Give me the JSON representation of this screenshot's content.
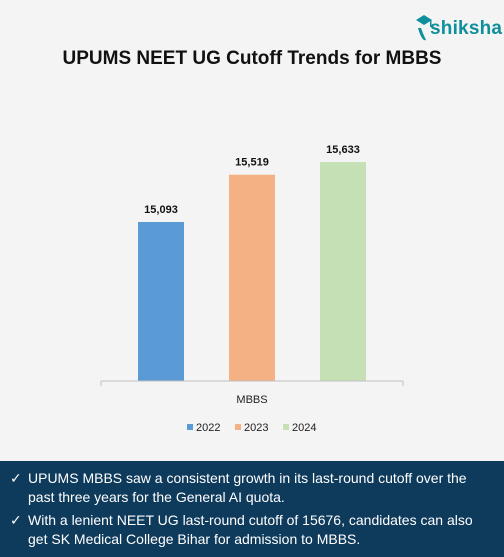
{
  "brand": {
    "name": "shiksha"
  },
  "colors": {
    "accent": "#0f8f9b",
    "footer_bg": "#0e3a5c"
  },
  "chart_data": {
    "type": "bar",
    "title": "UPUMS NEET UG Cutoff Trends for MBBS",
    "categories": [
      "MBBS"
    ],
    "series": [
      {
        "name": "2022",
        "values": [
          15093
        ],
        "color": "#5b9bd5"
      },
      {
        "name": "2023",
        "values": [
          15519
        ],
        "color": "#f4b183"
      },
      {
        "name": "2024",
        "values": [
          15633
        ],
        "color": "#c5e0b4"
      }
    ],
    "data_labels": [
      "15,093",
      "15,519",
      "15,633"
    ],
    "xlabel": "",
    "ylabel": "",
    "ylim": [
      13660,
      15850
    ],
    "grid": false,
    "legend_position": "bottom"
  },
  "notes": [
    {
      "icon": "check-icon",
      "text": "UPUMS MBBS saw a consistent growth in its last-round cutoff over the past three years for the General AI quota."
    },
    {
      "icon": "check-icon",
      "text": "With a lenient NEET UG last-round cutoff of 15676, candidates can also get SK Medical College Bihar for admission to MBBS."
    }
  ]
}
